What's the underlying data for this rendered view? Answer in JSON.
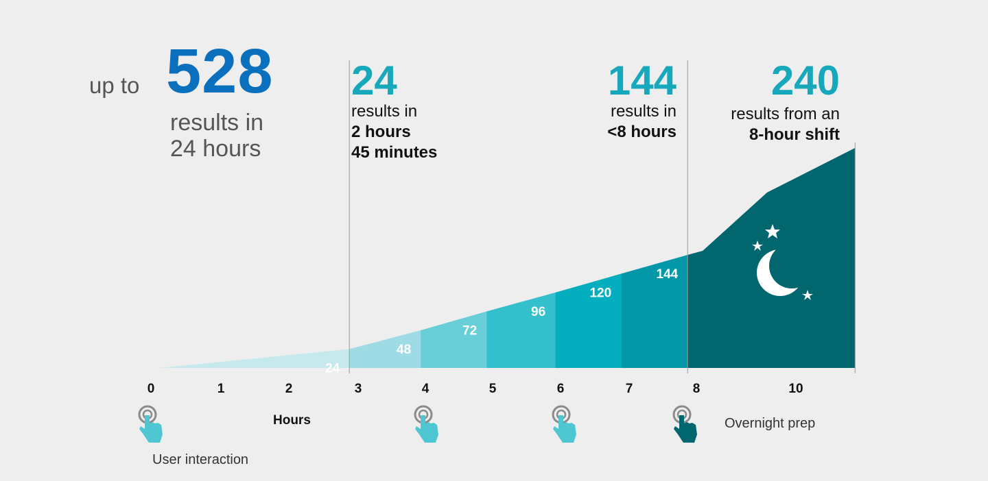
{
  "hero": {
    "prefix": "up to",
    "number": "528",
    "sub_line1": "results in",
    "sub_line2": "24 hours"
  },
  "stats": [
    {
      "number": "24",
      "label": "results in",
      "strong_line1": "2 hours",
      "strong_line2": "45 minutes"
    },
    {
      "number": "144",
      "label": "results in",
      "strong_line1": "<8 hours"
    },
    {
      "number": "240",
      "label": "results from an",
      "strong_line1": "8-hour shift"
    }
  ],
  "legend": {
    "user_interaction": "User interaction",
    "overnight_prep": "Overnight prep",
    "hours": "Hours"
  },
  "colors": {
    "background": "#eeeeee",
    "hero_blue": "#0a6fbd",
    "stat_teal": "#17a8bc",
    "night": "#02666e",
    "hand_light": "#4ec7d3",
    "hand_dark": "#02666e"
  },
  "chart_data": {
    "type": "area",
    "xlabel": "Hours",
    "x_ticks": [
      "0",
      "1",
      "2",
      "3",
      "4",
      "5",
      "6",
      "7",
      "8",
      "10"
    ],
    "segments": [
      {
        "x_start": 0,
        "x_end": 2.8,
        "value": 24,
        "label": "24",
        "color": "#c6e9ee"
      },
      {
        "x_start": 2.8,
        "x_end": 3.85,
        "value": 48,
        "label": "48",
        "color": "#9ddce5"
      },
      {
        "x_start": 3.85,
        "x_end": 4.82,
        "value": 72,
        "label": "72",
        "color": "#68cfd9"
      },
      {
        "x_start": 4.82,
        "x_end": 5.83,
        "value": 96,
        "label": "96",
        "color": "#34bfcc"
      },
      {
        "x_start": 5.83,
        "x_end": 6.8,
        "value": 120,
        "label": "120",
        "color": "#05aebf"
      },
      {
        "x_start": 6.8,
        "x_end": 7.78,
        "value": 144,
        "label": "144",
        "color": "#0497a8"
      },
      {
        "x_start": 7.78,
        "x_end": 10.6,
        "value": 240,
        "label": "",
        "color": "#02666e"
      }
    ],
    "interaction_hours": [
      0,
      4,
      6
    ],
    "overnight_hour": 8
  }
}
